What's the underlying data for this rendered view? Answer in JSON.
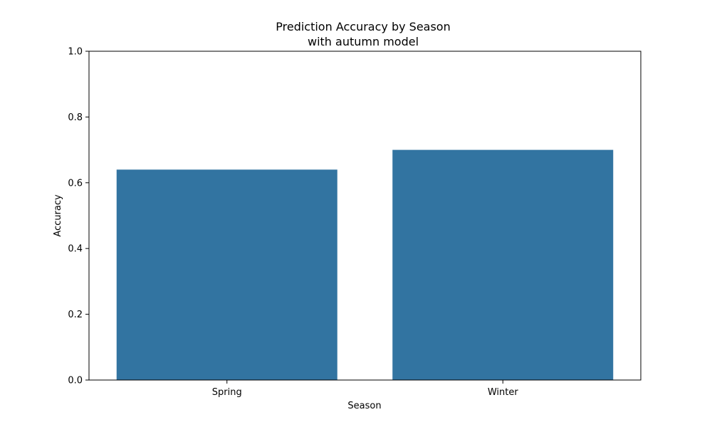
{
  "chart_data": {
    "type": "bar",
    "title": "Prediction Accuracy by Season",
    "subtitle": "with autumn model",
    "xlabel": "Season",
    "ylabel": "Accuracy",
    "categories": [
      "Spring",
      "Winter"
    ],
    "values": [
      0.64,
      0.7
    ],
    "ylim": [
      0,
      1.0
    ],
    "yticks": [
      "0.0",
      "0.2",
      "0.4",
      "0.6",
      "0.8",
      "1.0"
    ],
    "grid": false,
    "legend": "none",
    "bar_color": "#3274a1"
  }
}
